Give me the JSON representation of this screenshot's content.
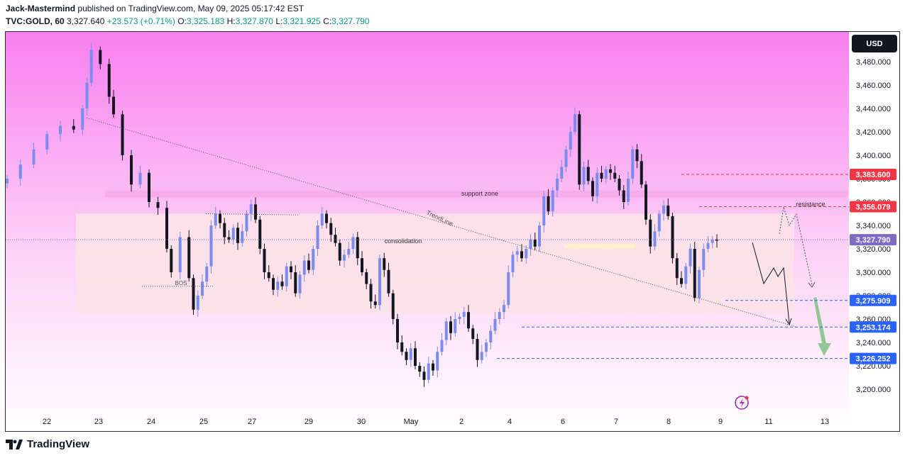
{
  "header": {
    "publisher": "Jack-Mastermind",
    "published_text": "published on TradingView.com, May 09, 2025 05:17:42 EST",
    "symbol": "TVC:GOLD, 60",
    "last": "3,327.640",
    "change": "+23.573 (+0.71%)",
    "o_label": "O:",
    "o": "3,325.183",
    "h_label": "H:",
    "h": "3,327.870",
    "l_label": "L:",
    "l": "3,321.925",
    "c_label": "C:",
    "c": "3,327.790"
  },
  "currency_button": "USD",
  "footer_brand": "TradingView",
  "colors": {
    "bg_top": "#f97ff0",
    "bg_bottom": "#ffffff",
    "candle_up": "#7b8cf0",
    "candle_down": "#131722",
    "red_level": "#f23645",
    "blue_level": "#2962ff",
    "last_price": "#7e6bc4"
  },
  "chart_data": {
    "type": "candlestick",
    "x_tick_labels": [
      "22",
      "23",
      "24",
      "25",
      "27",
      "29",
      "30",
      "May",
      "2",
      "4",
      "6",
      "7",
      "8",
      "9",
      "11",
      "13"
    ],
    "y_ticks": [
      3200,
      3220,
      3240,
      3260,
      3280,
      3300,
      3320,
      3340,
      3360,
      3380,
      3400,
      3420,
      3440,
      3460,
      3480
    ],
    "ylim": [
      3186,
      3504
    ],
    "price_path": [
      [
        0,
        3380
      ],
      [
        3,
        3392
      ],
      [
        6,
        3405
      ],
      [
        9,
        3418
      ],
      [
        12,
        3425
      ],
      [
        15,
        3422
      ],
      [
        17,
        3440
      ],
      [
        18,
        3462
      ],
      [
        19,
        3490
      ],
      [
        21,
        3478
      ],
      [
        23,
        3450
      ],
      [
        24,
        3435
      ],
      [
        26,
        3400
      ],
      [
        28,
        3375
      ],
      [
        30,
        3385
      ],
      [
        32,
        3360
      ],
      [
        34,
        3355
      ],
      [
        36,
        3320
      ],
      [
        37,
        3300
      ],
      [
        39,
        3330
      ],
      [
        41,
        3295
      ],
      [
        42,
        3268
      ],
      [
        43,
        3280
      ],
      [
        44,
        3292
      ],
      [
        45,
        3305
      ],
      [
        46,
        3340
      ],
      [
        47,
        3350
      ],
      [
        48,
        3342
      ],
      [
        49,
        3330
      ],
      [
        50,
        3328
      ],
      [
        51,
        3338
      ],
      [
        52,
        3325
      ],
      [
        53,
        3335
      ],
      [
        54,
        3350
      ],
      [
        55,
        3358
      ],
      [
        56,
        3345
      ],
      [
        57,
        3320
      ],
      [
        58,
        3300
      ],
      [
        59,
        3295
      ],
      [
        60,
        3285
      ],
      [
        61,
        3292
      ],
      [
        62,
        3288
      ],
      [
        63,
        3305
      ],
      [
        64,
        3300
      ],
      [
        65,
        3282
      ],
      [
        66,
        3298
      ],
      [
        67,
        3310
      ],
      [
        68,
        3302
      ],
      [
        69,
        3320
      ],
      [
        70,
        3340
      ],
      [
        71,
        3350
      ],
      [
        72,
        3342
      ],
      [
        73,
        3332
      ],
      [
        74,
        3325
      ],
      [
        75,
        3310
      ],
      [
        76,
        3315
      ],
      [
        77,
        3320
      ],
      [
        78,
        3330
      ],
      [
        79,
        3312
      ],
      [
        80,
        3300
      ],
      [
        81,
        3290
      ],
      [
        82,
        3275
      ],
      [
        83,
        3272
      ],
      [
        84,
        3312
      ],
      [
        85,
        3302
      ],
      [
        86,
        3282
      ],
      [
        87,
        3260
      ],
      [
        88,
        3240
      ],
      [
        89,
        3232
      ],
      [
        90,
        3225
      ],
      [
        91,
        3235
      ],
      [
        92,
        3220
      ],
      [
        93,
        3215
      ],
      [
        94,
        3208
      ],
      [
        95,
        3222
      ],
      [
        96,
        3216
      ],
      [
        97,
        3232
      ],
      [
        98,
        3242
      ],
      [
        99,
        3258
      ],
      [
        100,
        3248
      ],
      [
        101,
        3260
      ],
      [
        102,
        3262
      ],
      [
        103,
        3266
      ],
      [
        104,
        3252
      ],
      [
        105,
        3243
      ],
      [
        106,
        3225
      ],
      [
        107,
        3232
      ],
      [
        108,
        3240
      ],
      [
        109,
        3250
      ],
      [
        110,
        3260
      ],
      [
        111,
        3266
      ],
      [
        112,
        3272
      ],
      [
        113,
        3300
      ],
      [
        114,
        3315
      ],
      [
        115,
        3318
      ],
      [
        116,
        3312
      ],
      [
        117,
        3320
      ],
      [
        118,
        3328
      ],
      [
        119,
        3322
      ],
      [
        120,
        3340
      ],
      [
        121,
        3365
      ],
      [
        122,
        3352
      ],
      [
        123,
        3370
      ],
      [
        124,
        3380
      ],
      [
        125,
        3390
      ],
      [
        126,
        3405
      ],
      [
        127,
        3420
      ],
      [
        128,
        3435
      ],
      [
        129,
        3375
      ],
      [
        130,
        3390
      ],
      [
        131,
        3378
      ],
      [
        132,
        3365
      ],
      [
        133,
        3385
      ],
      [
        134,
        3380
      ],
      [
        135,
        3388
      ],
      [
        136,
        3385
      ],
      [
        137,
        3380
      ],
      [
        138,
        3370
      ],
      [
        139,
        3360
      ],
      [
        140,
        3380
      ],
      [
        141,
        3405
      ],
      [
        142,
        3395
      ],
      [
        143,
        3375
      ],
      [
        144,
        3345
      ],
      [
        145,
        3322
      ],
      [
        146,
        3335
      ],
      [
        147,
        3350
      ],
      [
        148,
        3357
      ],
      [
        149,
        3348
      ],
      [
        150,
        3312
      ],
      [
        151,
        3295
      ],
      [
        152,
        3290
      ],
      [
        153,
        3305
      ],
      [
        154,
        3320
      ],
      [
        155,
        3278
      ],
      [
        156,
        3302
      ],
      [
        157,
        3320
      ],
      [
        158,
        3325
      ],
      [
        159,
        3328
      ],
      [
        160,
        3327
      ]
    ],
    "levels": [
      {
        "label": "3,383.600",
        "value": 3383.6,
        "style": "red"
      },
      {
        "label": "3,356.079",
        "value": 3356.079,
        "style": "red"
      },
      {
        "label": "3,327.790",
        "value": 3327.79,
        "style": "last"
      },
      {
        "label": "3,275.909",
        "value": 3275.909,
        "style": "blue"
      },
      {
        "label": "3,253.174",
        "value": 3253.174,
        "style": "blue"
      },
      {
        "label": "3,226.252",
        "value": 3226.252,
        "style": "blue"
      }
    ],
    "annotations": {
      "support_zone": "support zone",
      "consolidation": "consolidation",
      "trendline": "TrendLine",
      "resistance": "resistance",
      "bos": "BOS"
    },
    "zones": [
      {
        "name": "support zone",
        "low": 3364,
        "high": 3370
      },
      {
        "name": "consolidation",
        "low": 3265,
        "high": 3350
      }
    ],
    "trendline": {
      "from": [
        16,
        3432
      ],
      "to": [
        169,
        3253
      ]
    }
  }
}
